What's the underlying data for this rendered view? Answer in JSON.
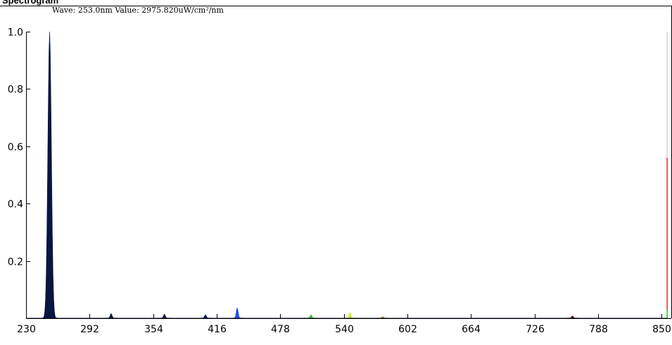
{
  "window": {
    "title": "Spectrogram"
  },
  "readout": {
    "text": "Wave: 253.0nm Value: 2975.820uW/cm²/nm"
  },
  "chart_data": {
    "type": "area",
    "title": "Spectrogram",
    "xlabel": "",
    "ylabel": "",
    "xlim": [
      230,
      856
    ],
    "ylim": [
      0,
      1.0
    ],
    "x_ticks": [
      230,
      292,
      354,
      416,
      478,
      540,
      602,
      664,
      726,
      788,
      850
    ],
    "y_ticks": [
      0.2,
      0.4,
      0.6,
      0.8,
      1.0
    ],
    "y_tick_labels": [
      "0.2",
      "0.4",
      "0.6",
      "0.8",
      "1.0"
    ],
    "cursor": {
      "wave_nm": 253.0,
      "value": 2975.82,
      "unit": "uW/cm²/nm"
    },
    "peaks": [
      {
        "x": 253.0,
        "y": 1.0,
        "width": 2.0,
        "color": "#0a1540"
      },
      {
        "x": 313.0,
        "y": 0.016,
        "width": 1.5,
        "color": "#101848"
      },
      {
        "x": 365.0,
        "y": 0.014,
        "width": 1.5,
        "color": "#101848"
      },
      {
        "x": 405.0,
        "y": 0.012,
        "width": 1.5,
        "color": "#12205a"
      },
      {
        "x": 436.0,
        "y": 0.036,
        "width": 1.5,
        "color": "#1e4ee8"
      },
      {
        "x": 508.0,
        "y": 0.012,
        "width": 1.5,
        "color": "#3fbf3f"
      },
      {
        "x": 546.0,
        "y": 0.02,
        "width": 1.5,
        "color": "#c8f02a"
      },
      {
        "x": 578.0,
        "y": 0.005,
        "width": 1.5,
        "color": "#a07000"
      },
      {
        "x": 763.0,
        "y": 0.008,
        "width": 1.5,
        "color": "#4a1410"
      }
    ],
    "end_marker": {
      "x": 855.0,
      "y_red": 0.56,
      "y_green": 0.03,
      "y_grey": 1.0
    },
    "colors": {
      "axis": "#000000",
      "grey_line": "#c8c8c8",
      "red": "#e00000",
      "green": "#30d030"
    }
  }
}
